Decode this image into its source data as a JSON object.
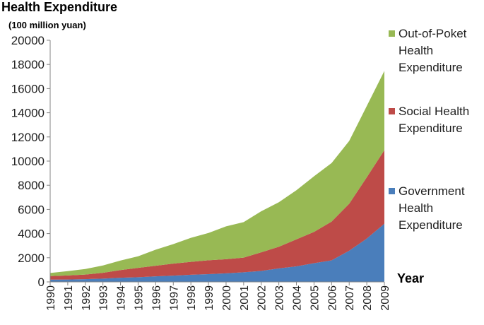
{
  "title": "Health Expenditure",
  "subtitle": "(100 million yuan)",
  "chart_data": {
    "type": "area",
    "stacked": true,
    "title": "Health Expenditure",
    "ylabel": "(100 million yuan)",
    "xlabel": "Year",
    "ylim": [
      0,
      20000
    ],
    "yticks": [
      0,
      2000,
      4000,
      6000,
      8000,
      10000,
      12000,
      14000,
      16000,
      18000,
      20000
    ],
    "categories": [
      "1990",
      "1991",
      "1992",
      "1993",
      "1994",
      "1995",
      "1996",
      "1997",
      "1998",
      "1999",
      "2000",
      "2001",
      "2002",
      "2003",
      "2004",
      "2005",
      "2006",
      "2007",
      "2008",
      "2009"
    ],
    "series": [
      {
        "name": "Government Health Expenditure",
        "color": "#4a7ebb",
        "values": [
          190,
          200,
          230,
          270,
          340,
          390,
          460,
          520,
          590,
          640,
          710,
          800,
          910,
          1120,
          1290,
          1550,
          1780,
          2580,
          3590,
          4820
        ]
      },
      {
        "name": "Social Health Expenditure",
        "color": "#be4b48",
        "values": [
          290,
          330,
          380,
          480,
          640,
          770,
          880,
          990,
          1070,
          1150,
          1170,
          1210,
          1540,
          1790,
          2230,
          2590,
          3210,
          3890,
          5070,
          6090
        ]
      },
      {
        "name": "Out-of-Poket Health Expenditure",
        "color": "#98b954",
        "values": [
          260,
          360,
          460,
          610,
          790,
          960,
          1330,
          1620,
          1990,
          2260,
          2720,
          2940,
          3400,
          3680,
          4070,
          4600,
          4850,
          5200,
          5900,
          6550
        ]
      }
    ],
    "grid": false,
    "legend_position": "right"
  }
}
